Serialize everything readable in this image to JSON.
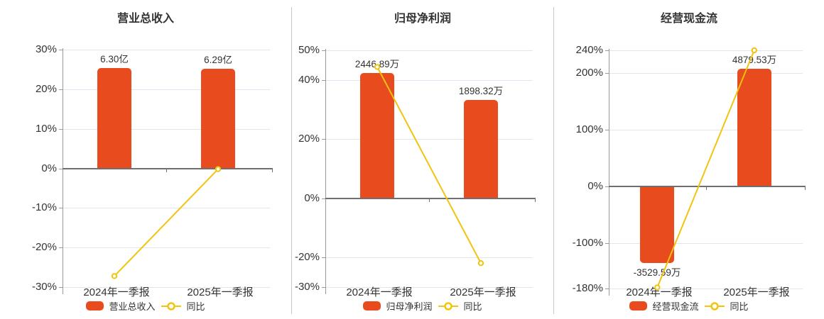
{
  "colors": {
    "bar": "#e84b1e",
    "line": "#f2c40f",
    "grid": "#e0e6f1",
    "zero_axis": "#6f6f6f",
    "y_axis": "#999999",
    "divider": "#c8c8c8",
    "text": "#333333"
  },
  "chart_data": [
    {
      "type": "bar",
      "title": "营业总收入",
      "categories": [
        "2024年一季报",
        "2025年一季报"
      ],
      "ylim": [
        -30,
        30
      ],
      "y_tick_values": [
        30,
        20,
        10,
        0,
        -10,
        -20,
        -30
      ],
      "y_tick_labels": [
        "30%",
        "20%",
        "10%",
        "0%",
        "-10%",
        "-20%",
        "-30%"
      ],
      "bar_series": {
        "name": "营业总收入",
        "value_labels": [
          "6.30亿",
          "6.29亿"
        ],
        "plotted_pct": [
          25.3,
          25.2
        ]
      },
      "line_series": {
        "name": "同比",
        "values_pct": [
          -27.2,
          -0.2
        ]
      },
      "legend_position": "bottom",
      "grid": true
    },
    {
      "type": "bar",
      "title": "归母净利润",
      "categories": [
        "2024年一季报",
        "2025年一季报"
      ],
      "ylim": [
        -30,
        50
      ],
      "y_tick_values": [
        50,
        40,
        20,
        0,
        -20,
        -30
      ],
      "y_tick_labels": [
        "50%",
        "40%",
        "20%",
        "0%",
        "-20%",
        "-30%"
      ],
      "bar_series": {
        "name": "归母净利润",
        "value_labels": [
          "2446.89万",
          "1898.32万"
        ],
        "plotted_pct": [
          42.4,
          33.3
        ]
      },
      "line_series": {
        "name": "同比",
        "values_pct": [
          44.4,
          -21.9
        ]
      },
      "legend_position": "bottom",
      "grid": true
    },
    {
      "type": "bar",
      "title": "经营现金流",
      "categories": [
        "2024年一季报",
        "2025年一季报"
      ],
      "ylim": [
        -180,
        240
      ],
      "y_tick_values": [
        240,
        200,
        100,
        0,
        -100,
        -180
      ],
      "y_tick_labels": [
        "240%",
        "200%",
        "100%",
        "0%",
        "-100%",
        "-180%"
      ],
      "bar_series": {
        "name": "经营现金流",
        "value_labels": [
          "-3529.59万",
          "4879.53万"
        ],
        "plotted_pct": [
          -135,
          207
        ]
      },
      "line_series": {
        "name": "同比",
        "values_pct": [
          -178,
          240
        ]
      },
      "legend_position": "bottom",
      "grid": true
    }
  ]
}
